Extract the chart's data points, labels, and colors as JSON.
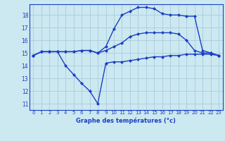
{
  "xlabel": "Graphe des températures (°c)",
  "background_color": "#cce8f0",
  "grid_color": "#aaccdd",
  "line_color": "#1a3fc4",
  "xlim": [
    -0.5,
    23.5
  ],
  "ylim": [
    10.5,
    18.85
  ],
  "yticks": [
    11,
    12,
    13,
    14,
    15,
    16,
    17,
    18
  ],
  "xticks": [
    0,
    1,
    2,
    3,
    4,
    5,
    6,
    7,
    8,
    9,
    10,
    11,
    12,
    13,
    14,
    15,
    16,
    17,
    18,
    19,
    20,
    21,
    22,
    23
  ],
  "line1_x": [
    0,
    1,
    2,
    3,
    4,
    5,
    6,
    7,
    8,
    9,
    10,
    11,
    12,
    13,
    14,
    15,
    16,
    17,
    18,
    19,
    20,
    21,
    22,
    23
  ],
  "line1_y": [
    14.8,
    15.1,
    15.1,
    15.1,
    14.0,
    13.3,
    12.6,
    12.0,
    11.0,
    14.2,
    14.3,
    14.3,
    14.4,
    14.5,
    14.6,
    14.7,
    14.7,
    14.8,
    14.8,
    14.9,
    14.9,
    14.9,
    14.9,
    14.8
  ],
  "line2_x": [
    0,
    1,
    2,
    3,
    4,
    5,
    6,
    7,
    8,
    9,
    10,
    11,
    12,
    13,
    14,
    15,
    16,
    17,
    18,
    19,
    20,
    21,
    22,
    23
  ],
  "line2_y": [
    14.8,
    15.1,
    15.1,
    15.1,
    15.1,
    15.1,
    15.2,
    15.2,
    15.0,
    15.2,
    15.5,
    15.8,
    16.3,
    16.5,
    16.6,
    16.6,
    16.6,
    16.6,
    16.5,
    16.0,
    15.2,
    15.0,
    15.0,
    14.8
  ],
  "line3_x": [
    0,
    1,
    2,
    3,
    4,
    5,
    6,
    7,
    8,
    9,
    10,
    11,
    12,
    13,
    14,
    15,
    16,
    17,
    18,
    19,
    20,
    21,
    22,
    23
  ],
  "line3_y": [
    14.8,
    15.1,
    15.1,
    15.1,
    15.1,
    15.1,
    15.2,
    15.2,
    15.0,
    15.5,
    16.9,
    18.0,
    18.3,
    18.6,
    18.6,
    18.5,
    18.1,
    18.0,
    18.0,
    17.9,
    17.9,
    15.2,
    15.0,
    14.8
  ],
  "marker_size": 2.5,
  "line_width": 1.0,
  "tick_fontsize": 5.0,
  "xlabel_fontsize": 6.0
}
